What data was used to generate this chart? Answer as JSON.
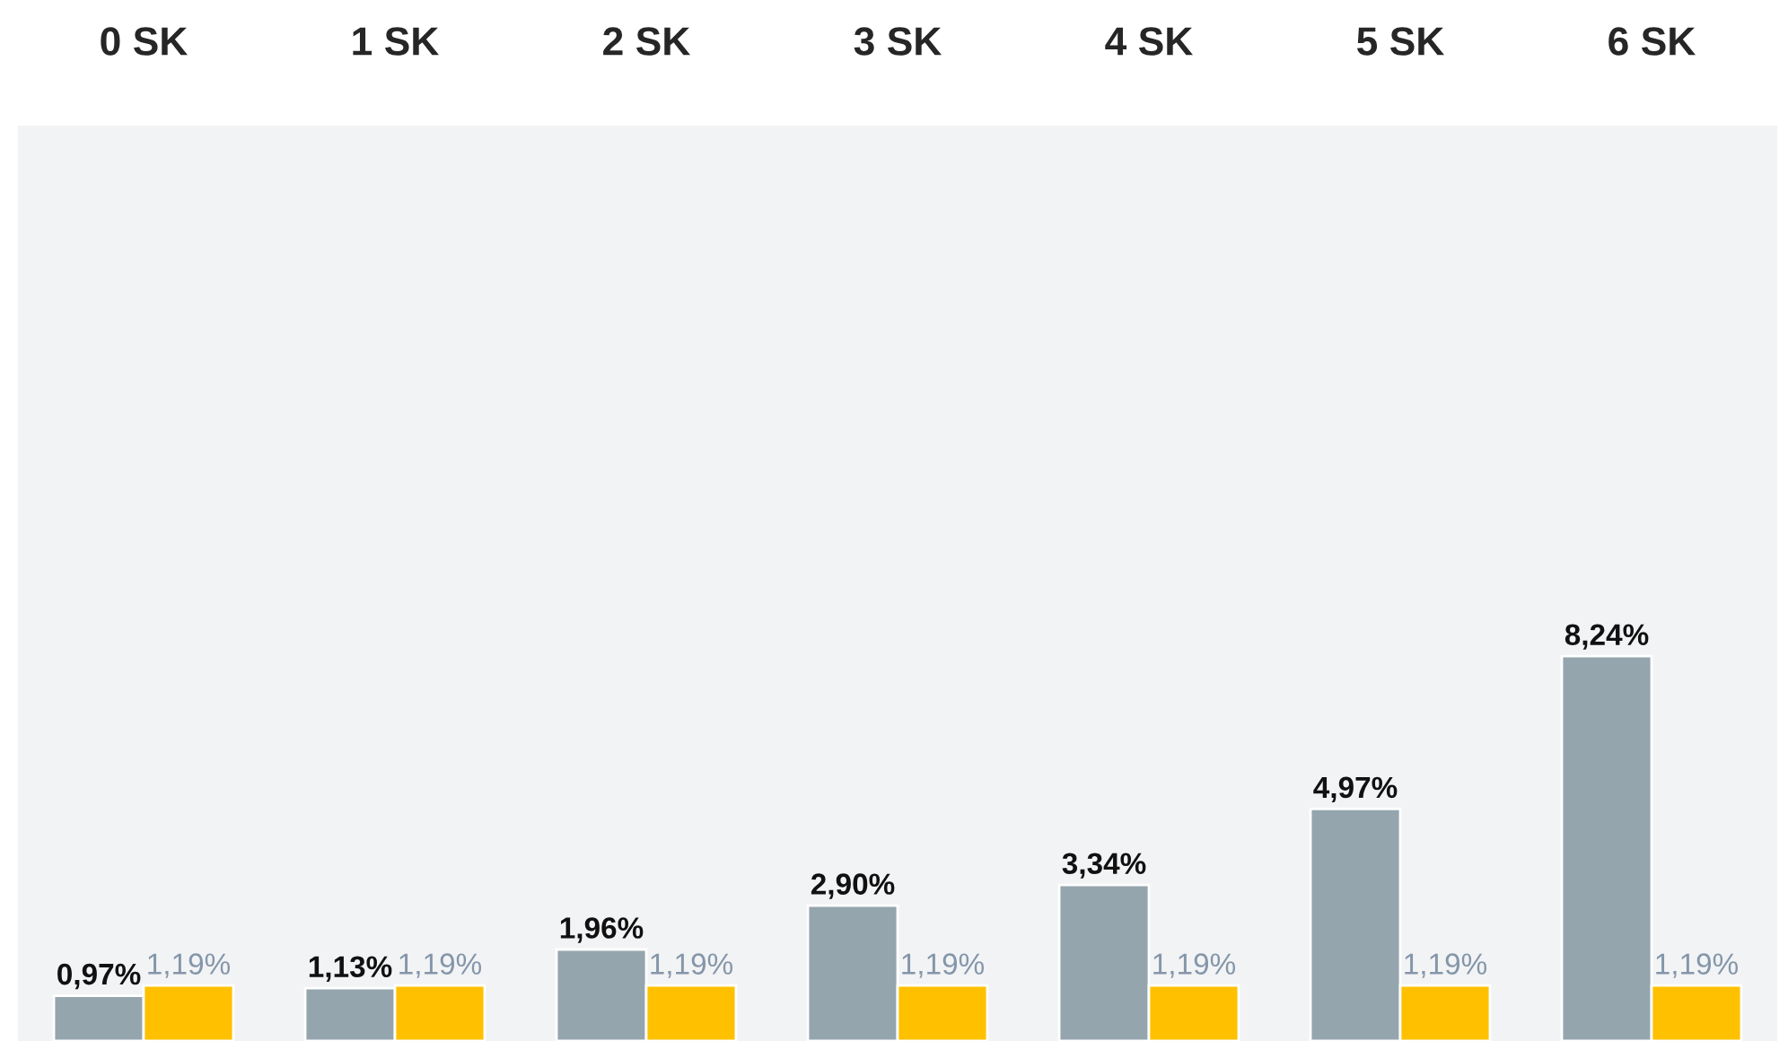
{
  "chart_data": {
    "type": "bar",
    "categories": [
      "0 SK",
      "1 SK",
      "2 SK",
      "3 SK",
      "4 SK",
      "5 SK",
      "6 SK"
    ],
    "series": [
      {
        "color": "#95a5ae",
        "values": [
          0.97,
          1.13,
          1.96,
          2.9,
          3.34,
          4.97,
          8.24
        ],
        "value_labels": [
          "0,97%",
          "1,13%",
          "1,96%",
          "2,90%",
          "3,34%",
          "4,97%",
          "8,24%"
        ]
      },
      {
        "color": "#ffc000",
        "values": [
          1.19,
          1.19,
          1.19,
          1.19,
          1.19,
          1.19,
          1.19
        ],
        "value_labels": [
          "1,19%",
          "1,19%",
          "1,19%",
          "1,19%",
          "1,19%",
          "1,19%",
          "1,19%"
        ]
      }
    ],
    "ylim": [
      0,
      19.6
    ],
    "tick_labels": "x",
    "grid": false,
    "legend": false
  }
}
